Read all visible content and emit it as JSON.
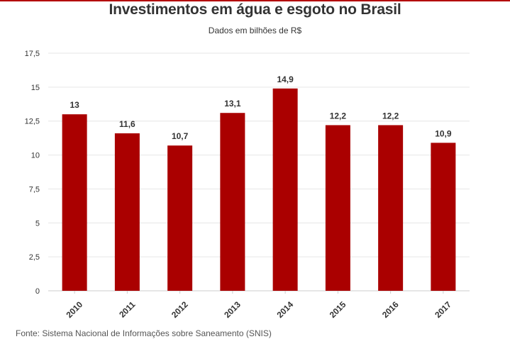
{
  "chart_data": {
    "type": "bar",
    "title": "Investimentos em água e esgoto no Brasil",
    "subtitle": "Dados em bilhões de R$",
    "xlabel": "",
    "ylabel": "",
    "categories": [
      "2010",
      "2011",
      "2012",
      "2013",
      "2014",
      "2015",
      "2016",
      "2017"
    ],
    "values": [
      13,
      11.6,
      10.7,
      13.1,
      14.9,
      12.2,
      12.2,
      10.9
    ],
    "value_labels": [
      "13",
      "11,6",
      "10,7",
      "13,1",
      "14,9",
      "12,2",
      "12,2",
      "10,9"
    ],
    "ylim": [
      0,
      17.5
    ],
    "yticks": [
      0,
      2.5,
      5,
      7.5,
      10,
      12.5,
      15,
      17.5
    ],
    "ytick_labels": [
      "0",
      "2,5",
      "5",
      "7,5",
      "10",
      "12,5",
      "15",
      "17,5"
    ],
    "grid": true,
    "legend": "none",
    "bar_color": "#aa0000",
    "source": "Fonte: Sistema Nacional de Informações sobre Saneamento (SNIS)"
  },
  "colors": {
    "bar": "#aa0000",
    "accent_rule": "#b30000",
    "grid": "#e6e6e6",
    "axis": "#cccccc",
    "text": "#333333"
  }
}
